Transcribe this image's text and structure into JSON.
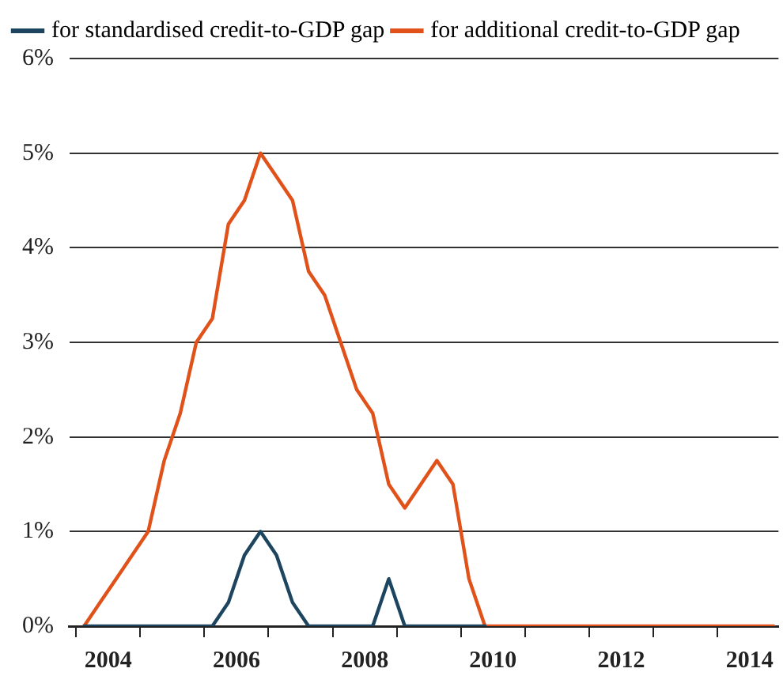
{
  "chart_data": {
    "type": "line",
    "x": [
      2003.625,
      2003.875,
      2004.125,
      2004.375,
      2004.625,
      2004.875,
      2005.125,
      2005.375,
      2005.625,
      2005.875,
      2006.125,
      2006.375,
      2006.625,
      2006.875,
      2007.125,
      2007.375,
      2007.625,
      2007.875,
      2008.125,
      2008.375,
      2008.625,
      2008.875,
      2009.125,
      2009.375,
      2009.625,
      2009.875,
      2010.125,
      2010.375,
      2010.625,
      2010.875,
      2011.125,
      2011.375,
      2011.625,
      2011.875,
      2012.125,
      2012.375,
      2012.625,
      2012.875,
      2013.125,
      2013.375,
      2013.625,
      2013.875,
      2014.125,
      2014.375
    ],
    "series": [
      {
        "name": "for standardised credit-to-GDP gap",
        "color": "#1d4560",
        "values": [
          0,
          0,
          0,
          0,
          0,
          0,
          0,
          0,
          0,
          0.25,
          0.75,
          1.0,
          0.75,
          0.25,
          0,
          0,
          0,
          0,
          0,
          0.5,
          0,
          0,
          0,
          0,
          0,
          0,
          null,
          null,
          null,
          null,
          null,
          null,
          null,
          null,
          null,
          null,
          null,
          null,
          null,
          null,
          null,
          null,
          null,
          null
        ]
      },
      {
        "name": "for additional credit-to-GDP gap",
        "color": "#e0521a",
        "values": [
          0,
          0.25,
          0.5,
          0.75,
          1.0,
          1.75,
          2.25,
          3.0,
          3.25,
          4.25,
          4.5,
          5.0,
          4.75,
          4.5,
          3.75,
          3.5,
          3.0,
          2.5,
          2.25,
          1.5,
          1.25,
          1.5,
          1.75,
          1.5,
          0.5,
          0,
          0,
          0,
          0,
          0,
          0,
          0,
          0,
          0,
          0,
          0,
          0,
          0,
          0,
          0,
          0,
          0,
          0,
          0
        ]
      }
    ],
    "xlim": [
      2003.4,
      2014.45
    ],
    "xticks": [
      {
        "value": 2003.5,
        "label": null
      },
      2004,
      {
        "value": 2004.5,
        "label": null
      },
      {
        "value": 2005.5,
        "label": null
      },
      2006,
      {
        "value": 2006.5,
        "label": null
      },
      {
        "value": 2007.5,
        "label": null
      },
      2008,
      {
        "value": 2008.5,
        "label": null
      },
      {
        "value": 2009.5,
        "label": null
      },
      2010,
      {
        "value": 2010.5,
        "label": null
      },
      {
        "value": 2011.5,
        "label": null
      },
      2012,
      {
        "value": 2012.5,
        "label": null
      },
      {
        "value": 2013.5,
        "label": null
      },
      2014
    ],
    "ylim": [
      0,
      6
    ],
    "yticks": [
      {
        "value": 0,
        "label": "0%"
      },
      {
        "value": 1,
        "label": "1%"
      },
      {
        "value": 2,
        "label": "2%"
      },
      {
        "value": 3,
        "label": "3%"
      },
      {
        "value": 4,
        "label": "4%"
      },
      {
        "value": 5,
        "label": "5%"
      },
      {
        "value": 6,
        "label": "6%"
      }
    ],
    "grid": "y",
    "legend": "top left",
    "marker": "none",
    "line_style": "solid"
  }
}
